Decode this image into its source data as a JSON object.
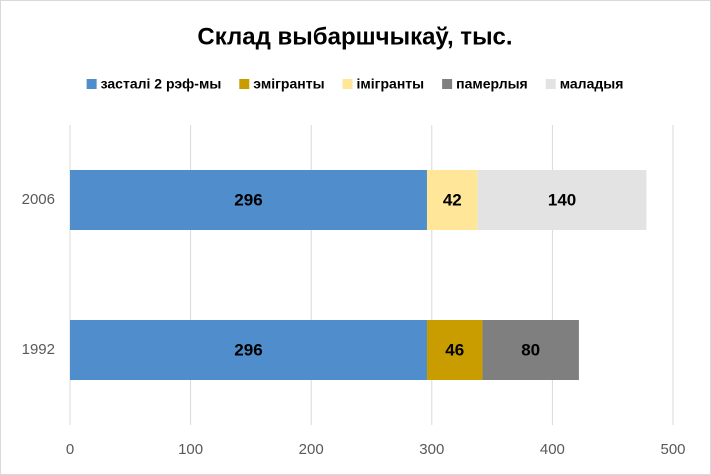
{
  "chart_data": {
    "type": "stacked-bar-horizontal",
    "title": "Склад выбаршчыкаў, тыс.",
    "categories": [
      "1992",
      "2006"
    ],
    "series": [
      {
        "name": "засталі 2 рэф-мы",
        "color": "#4f8dcc",
        "values": [
          296,
          296
        ]
      },
      {
        "name": "эмігранты",
        "color": "#c99c00",
        "values": [
          46,
          null
        ]
      },
      {
        "name": "імігранты",
        "color": "#ffe699",
        "values": [
          null,
          42
        ]
      },
      {
        "name": "памерлыя",
        "color": "#7f7f7f",
        "values": [
          80,
          null
        ]
      },
      {
        "name": "маладыя",
        "color": "#e3e3e3",
        "values": [
          null,
          140
        ]
      }
    ],
    "xlim": [
      0,
      500
    ],
    "xticks": [
      0,
      100,
      200,
      300,
      400,
      500
    ],
    "grid": true,
    "legend": "top"
  }
}
